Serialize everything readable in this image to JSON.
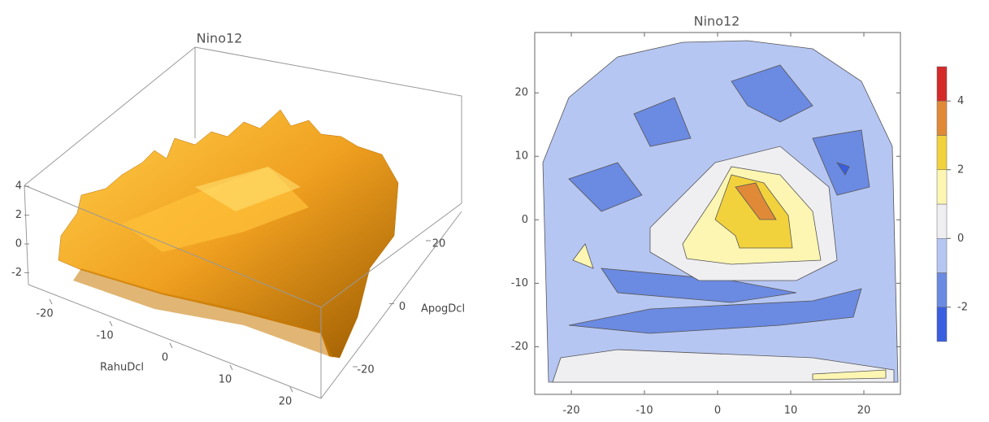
{
  "chart_data": [
    {
      "type": "surface3d",
      "title": "Nino12",
      "xlabel": "RahuDcl",
      "ylabel": "ApogDcl",
      "xlim": [
        -25,
        25
      ],
      "ylim": [
        -25,
        25
      ],
      "zlim": [
        -3,
        5
      ],
      "xticks": [
        -20,
        -10,
        0,
        10,
        20
      ],
      "yticks": [
        -20,
        0,
        20
      ],
      "zticks": [
        -2,
        0,
        2,
        4
      ],
      "color": "#f0a020"
    },
    {
      "type": "contour",
      "title": "Nino12",
      "xlim": [
        -25,
        25
      ],
      "ylim": [
        -27.5,
        29.5
      ],
      "xticks": [
        -20,
        -10,
        0,
        10,
        20
      ],
      "yticks": [
        -20,
        -10,
        0,
        10,
        20
      ],
      "levels": [
        -3,
        -2,
        -1,
        0,
        1,
        2,
        3,
        4,
        5
      ],
      "colors": [
        "#3a5ee0",
        "#6b8ae2",
        "#b6c6f2",
        "#efeff2",
        "#fdf6b2",
        "#f2d23c",
        "#e08a38",
        "#d42a2a"
      ],
      "legend_ticks": [
        -2,
        0,
        2,
        4
      ]
    }
  ]
}
